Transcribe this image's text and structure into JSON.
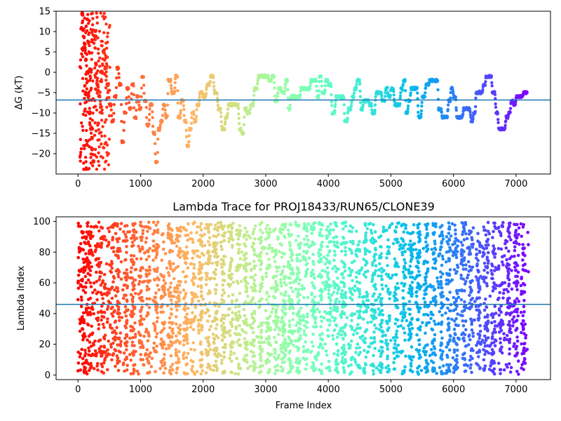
{
  "chart_data": [
    {
      "type": "scatter",
      "title": "",
      "xlabel": "",
      "ylabel": "ΔG (kT)",
      "xlim": [
        -350,
        7550
      ],
      "ylim": [
        -25,
        15
      ],
      "xticks": [
        0,
        1000,
        2000,
        3000,
        4000,
        5000,
        6000,
        7000
      ],
      "yticks": [
        -20,
        -15,
        -10,
        -5,
        0,
        5,
        10,
        15
      ],
      "hline": -6.8,
      "hline_color": "#1f77b4",
      "colormap": "rainbow (reversed: red at frame 0, violet at last frame)",
      "x_max_frame": 7200,
      "trace_points": [
        [
          60,
          14.5
        ],
        [
          80,
          10.5
        ],
        [
          100,
          7
        ],
        [
          120,
          3
        ],
        [
          140,
          0
        ],
        [
          160,
          -5
        ],
        [
          180,
          -10
        ],
        [
          200,
          -14
        ],
        [
          220,
          -19
        ],
        [
          240,
          -22
        ],
        [
          260,
          9
        ],
        [
          280,
          2
        ],
        [
          300,
          -3
        ],
        [
          330,
          -6
        ],
        [
          360,
          0
        ],
        [
          400,
          5
        ],
        [
          430,
          1
        ],
        [
          460,
          -3
        ],
        [
          500,
          -8
        ],
        [
          540,
          -12
        ],
        [
          580,
          -6
        ],
        [
          620,
          1
        ],
        [
          660,
          -3
        ],
        [
          700,
          -17
        ],
        [
          740,
          -10
        ],
        [
          780,
          -4
        ],
        [
          820,
          -9
        ],
        [
          860,
          -3
        ],
        [
          900,
          -11
        ],
        [
          940,
          -6
        ],
        [
          980,
          -9
        ],
        [
          1020,
          -1
        ],
        [
          1060,
          -7
        ],
        [
          1100,
          -13
        ],
        [
          1150,
          -8
        ],
        [
          1200,
          -15
        ],
        [
          1240,
          -22
        ],
        [
          1280,
          -14
        ],
        [
          1320,
          -12
        ],
        [
          1360,
          -8
        ],
        [
          1400,
          -11
        ],
        [
          1440,
          -2
        ],
        [
          1500,
          -5
        ],
        [
          1560,
          -1
        ],
        [
          1600,
          -11
        ],
        [
          1650,
          -7
        ],
        [
          1700,
          -12
        ],
        [
          1740,
          -18
        ],
        [
          1780,
          -14
        ],
        [
          1820,
          -10
        ],
        [
          1860,
          -12
        ],
        [
          1900,
          -8
        ],
        [
          1950,
          -5
        ],
        [
          2000,
          -6
        ],
        [
          2060,
          -3
        ],
        [
          2120,
          -1
        ],
        [
          2180,
          -5
        ],
        [
          2240,
          -9
        ],
        [
          2300,
          -14
        ],
        [
          2360,
          -11
        ],
        [
          2400,
          -8
        ],
        [
          2460,
          -8
        ],
        [
          2520,
          -8
        ],
        [
          2580,
          -14
        ],
        [
          2620,
          -15
        ],
        [
          2660,
          -9
        ],
        [
          2700,
          -10
        ],
        [
          2760,
          -8
        ],
        [
          2820,
          -4
        ],
        [
          2880,
          -1
        ],
        [
          2940,
          -1
        ],
        [
          3000,
          -1
        ],
        [
          3050,
          -2
        ],
        [
          3100,
          -1
        ],
        [
          3150,
          -7
        ],
        [
          3200,
          -4
        ],
        [
          3260,
          -5
        ],
        [
          3320,
          -2
        ],
        [
          3360,
          -9
        ],
        [
          3400,
          -6
        ],
        [
          3460,
          -6
        ],
        [
          3520,
          -6
        ],
        [
          3560,
          -4
        ],
        [
          3620,
          -4
        ],
        [
          3680,
          -4
        ],
        [
          3720,
          -2
        ],
        [
          3780,
          -2
        ],
        [
          3820,
          -6
        ],
        [
          3860,
          -1
        ],
        [
          3900,
          -5
        ],
        [
          3960,
          -2
        ],
        [
          4000,
          -3
        ],
        [
          4060,
          -10
        ],
        [
          4120,
          -6
        ],
        [
          4180,
          -6
        ],
        [
          4220,
          -6
        ],
        [
          4260,
          -12
        ],
        [
          4320,
          -9
        ],
        [
          4380,
          -6
        ],
        [
          4420,
          -4
        ],
        [
          4460,
          -2
        ],
        [
          4520,
          -9
        ],
        [
          4560,
          -7
        ],
        [
          4600,
          -7
        ],
        [
          4660,
          -8
        ],
        [
          4700,
          -10
        ],
        [
          4760,
          -5
        ],
        [
          4800,
          -5
        ],
        [
          4860,
          -7
        ],
        [
          4920,
          -4
        ],
        [
          4960,
          -6
        ],
        [
          5000,
          -4
        ],
        [
          5060,
          -8
        ],
        [
          5100,
          -8
        ],
        [
          5160,
          -4
        ],
        [
          5200,
          -2
        ],
        [
          5240,
          -10
        ],
        [
          5280,
          -7
        ],
        [
          5320,
          -4
        ],
        [
          5380,
          -4
        ],
        [
          5440,
          -11
        ],
        [
          5500,
          -6
        ],
        [
          5560,
          -3
        ],
        [
          5620,
          -2
        ],
        [
          5680,
          -2
        ],
        [
          5720,
          -2
        ],
        [
          5760,
          -9
        ],
        [
          5820,
          -11
        ],
        [
          5860,
          -11
        ],
        [
          5920,
          -7
        ],
        [
          5960,
          -4
        ],
        [
          6000,
          -6
        ],
        [
          6050,
          -11
        ],
        [
          6100,
          -11
        ],
        [
          6160,
          -9
        ],
        [
          6220,
          -9
        ],
        [
          6280,
          -12
        ],
        [
          6320,
          -10
        ],
        [
          6360,
          -5
        ],
        [
          6420,
          -5
        ],
        [
          6480,
          -3
        ],
        [
          6520,
          -1
        ],
        [
          6580,
          -1
        ],
        [
          6620,
          -5
        ],
        [
          6680,
          -10
        ],
        [
          6720,
          -14
        ],
        [
          6780,
          -14
        ],
        [
          6840,
          -11
        ],
        [
          6880,
          -10
        ],
        [
          6920,
          -7
        ],
        [
          6960,
          -8
        ],
        [
          7000,
          -6
        ],
        [
          7060,
          -6
        ],
        [
          7120,
          -5
        ],
        [
          7180,
          -5
        ]
      ]
    },
    {
      "type": "scatter",
      "title": "Lambda Trace for PROJ18433/RUN65/CLONE39",
      "xlabel": "Frame Index",
      "ylabel": "Lambda Index",
      "xlim": [
        -350,
        7550
      ],
      "ylim": [
        -3,
        103
      ],
      "xticks": [
        0,
        1000,
        2000,
        3000,
        4000,
        5000,
        6000,
        7000
      ],
      "yticks": [
        0,
        20,
        40,
        60,
        80,
        100
      ],
      "hline": 46,
      "hline_color": "#1f77b4",
      "colormap": "rainbow (reversed: red at frame 0, violet at last frame)",
      "x_range": [
        0,
        7200
      ],
      "lambda_range": [
        0,
        99
      ],
      "point_count": 4200
    }
  ],
  "figure": {
    "background": "#ffffff",
    "axes_color": "#000000"
  }
}
